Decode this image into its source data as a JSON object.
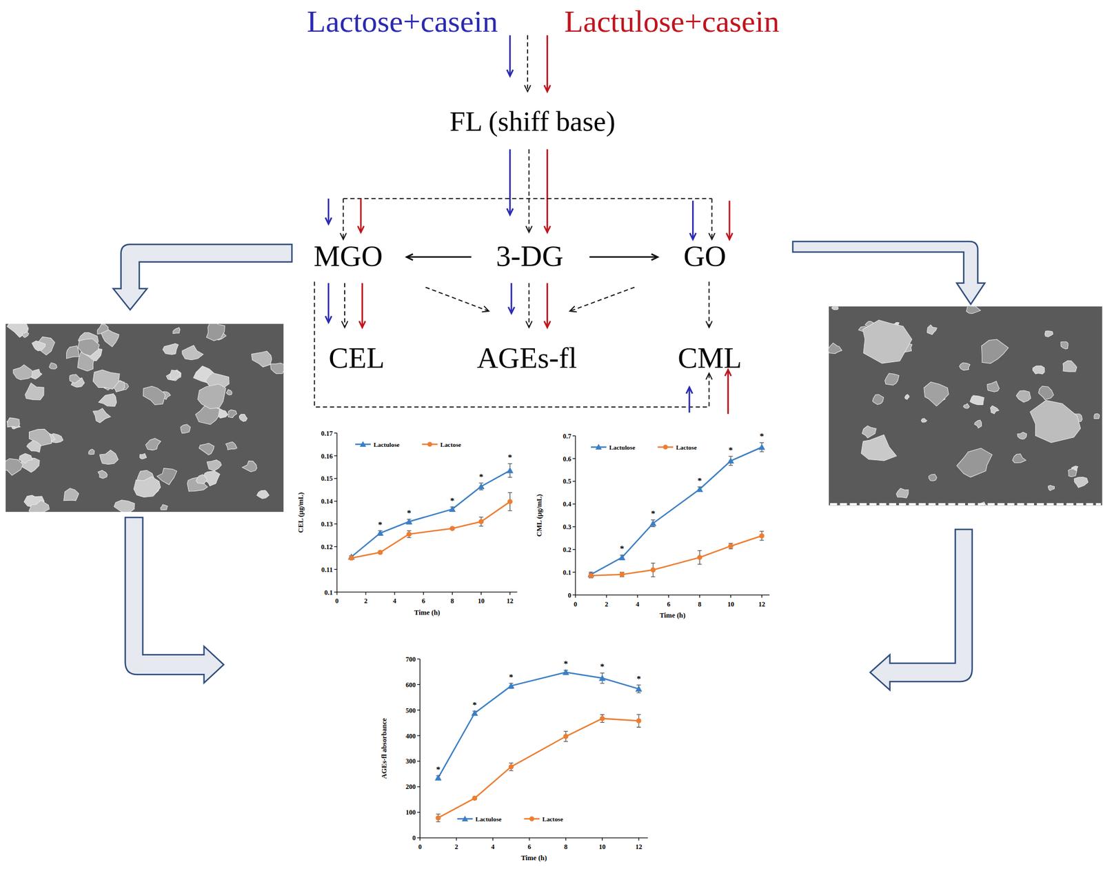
{
  "diagram": {
    "sources": [
      {
        "label": "Lactose+casein",
        "color": "#2a2ab0"
      },
      {
        "label": "Lactulose+casein",
        "color": "#c0141c"
      }
    ],
    "nodes": [
      {
        "label": "FL (shiff base)"
      },
      {
        "label": "MGO"
      },
      {
        "label": "3-DG"
      },
      {
        "label": "GO"
      },
      {
        "label": "CEL"
      },
      {
        "label": "AGEs-fl"
      },
      {
        "label": "CML"
      }
    ]
  },
  "chart_data": [
    {
      "type": "line",
      "x_label": "Time (h)",
      "y_label": "CEL (μg/mL)",
      "xlim": [
        0,
        12.5
      ],
      "ylim": [
        0.1,
        0.17
      ],
      "xticks": [
        0,
        2,
        4,
        6,
        8,
        10,
        12
      ],
      "yticks": [
        0.1,
        0.11,
        0.12,
        0.13,
        0.14,
        0.15,
        0.16,
        0.17
      ],
      "legend": "top",
      "x": [
        1,
        3,
        5,
        8,
        10,
        12
      ],
      "series": [
        {
          "name": "Lactulose",
          "color": "#3b7fc4",
          "marker": "triangle",
          "values": [
            0.1155,
            0.126,
            0.131,
            0.1365,
            0.1465,
            0.1535
          ],
          "errors": [
            0.0005,
            0.001,
            0.001,
            0.001,
            0.0015,
            0.003
          ]
        },
        {
          "name": "Lactose",
          "color": "#ed7d31",
          "marker": "circle",
          "values": [
            0.115,
            0.1175,
            0.1255,
            0.128,
            0.131,
            0.1398
          ],
          "errors": [
            0.0005,
            0.0005,
            0.0015,
            0.0005,
            0.002,
            0.004
          ]
        }
      ],
      "annotations": [
        {
          "text": "*",
          "x": 3
        },
        {
          "text": "*",
          "x": 5
        },
        {
          "text": "*",
          "x": 8
        },
        {
          "text": "*",
          "x": 10
        },
        {
          "text": "*",
          "x": 12
        }
      ]
    },
    {
      "type": "line",
      "x_label": "Time (h)",
      "y_label": "CML (μg/mL)",
      "xlim": [
        0,
        12.5
      ],
      "ylim": [
        0,
        0.7
      ],
      "xticks": [
        0,
        2,
        4,
        6,
        8,
        10,
        12
      ],
      "yticks": [
        0,
        0.1,
        0.2,
        0.3,
        0.4,
        0.5,
        0.6,
        0.7
      ],
      "legend": "top",
      "x": [
        1,
        3,
        5,
        8,
        10,
        12
      ],
      "series": [
        {
          "name": "Lactulose",
          "color": "#3b7fc4",
          "marker": "triangle",
          "values": [
            0.09,
            0.165,
            0.315,
            0.465,
            0.59,
            0.65
          ],
          "errors": [
            0.01,
            0.01,
            0.015,
            0.01,
            0.02,
            0.02
          ]
        },
        {
          "name": "Lactose",
          "color": "#ed7d31",
          "marker": "circle",
          "values": [
            0.085,
            0.09,
            0.11,
            0.165,
            0.215,
            0.26
          ],
          "errors": [
            0.01,
            0.01,
            0.03,
            0.03,
            0.012,
            0.02
          ]
        }
      ],
      "annotations": [
        {
          "text": "*",
          "x": 3
        },
        {
          "text": "*",
          "x": 5
        },
        {
          "text": "*",
          "x": 8
        },
        {
          "text": "*",
          "x": 10
        },
        {
          "text": "*",
          "x": 12
        }
      ]
    },
    {
      "type": "line",
      "x_label": "Time (h)",
      "y_label": "AGEs-fl absorbance",
      "xlim": [
        0,
        12.5
      ],
      "ylim": [
        0,
        700
      ],
      "xticks": [
        0,
        2,
        4,
        6,
        8,
        10,
        12
      ],
      "yticks": [
        0,
        100,
        200,
        300,
        400,
        500,
        600,
        700
      ],
      "legend": "bottom",
      "x": [
        1,
        3,
        5,
        8,
        10,
        12
      ],
      "series": [
        {
          "name": "Lactulose",
          "color": "#3b7fc4",
          "marker": "triangle",
          "values": [
            235,
            488,
            595,
            648,
            625,
            583
          ],
          "errors": [
            8,
            8,
            10,
            8,
            20,
            15
          ]
        },
        {
          "name": "Lactose",
          "color": "#ed7d31",
          "marker": "circle",
          "values": [
            78,
            155,
            278,
            397,
            467,
            458
          ],
          "errors": [
            15,
            5,
            15,
            20,
            15,
            25
          ]
        }
      ],
      "annotations": [
        {
          "text": "*",
          "x": 1
        },
        {
          "text": "*",
          "x": 3
        },
        {
          "text": "*",
          "x": 5
        },
        {
          "text": "*",
          "x": 8
        },
        {
          "text": "*",
          "x": 10
        },
        {
          "text": "*",
          "x": 12
        }
      ]
    }
  ]
}
